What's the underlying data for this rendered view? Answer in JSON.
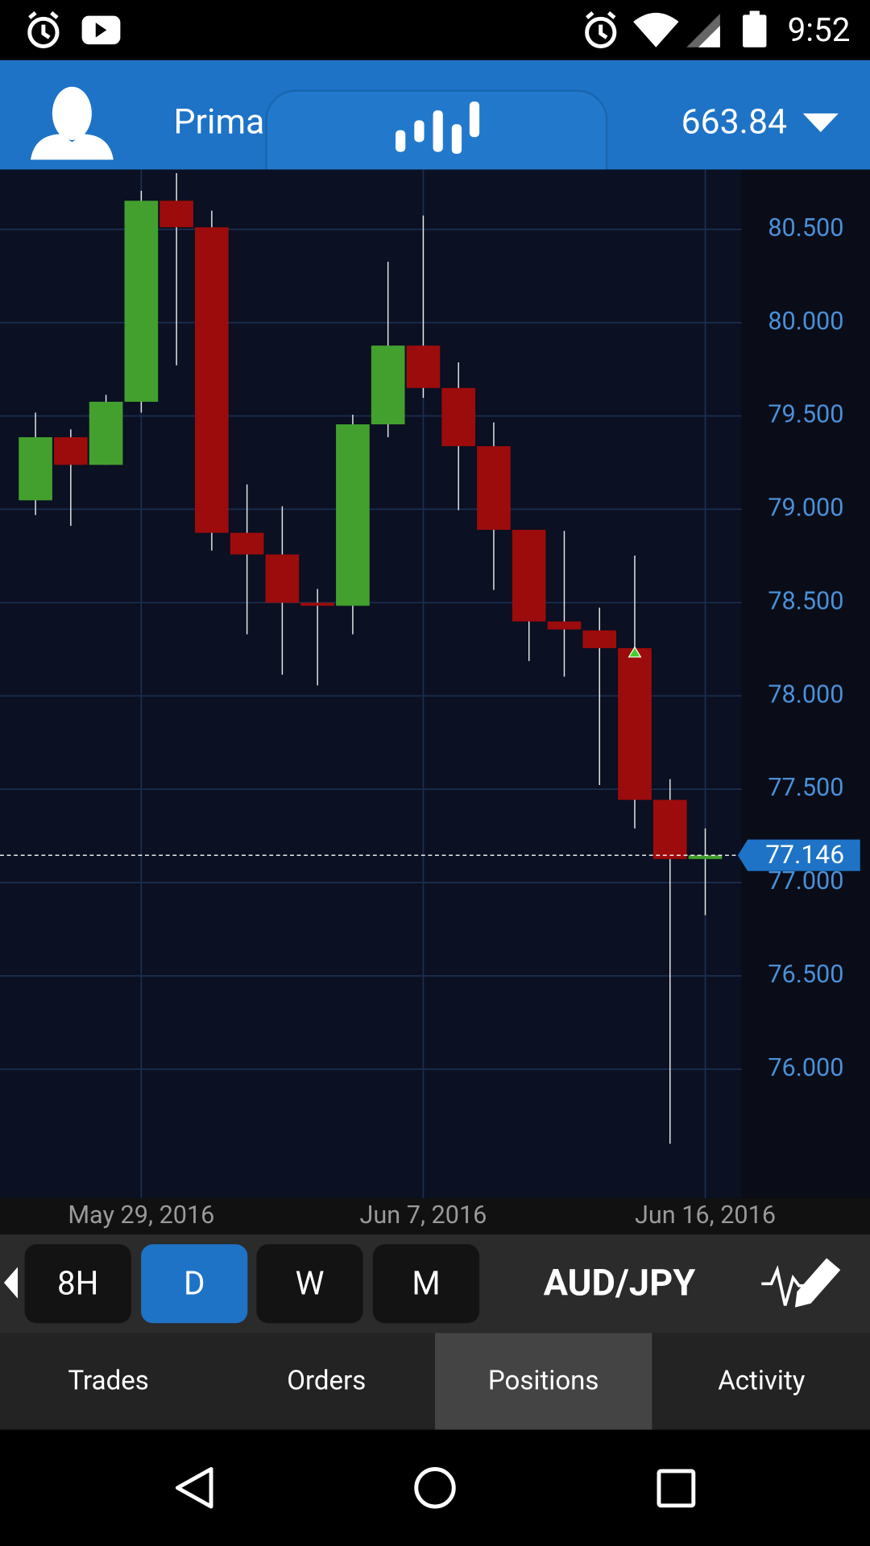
{
  "ui": {
    "status_time": "9:52",
    "account_label": "Prima",
    "balance": "663.84",
    "timeframes": [
      "8H",
      "D",
      "W",
      "M"
    ],
    "pair": "AUD/JPY",
    "tabs": [
      "Trades",
      "Orders",
      "Positions",
      "Activity"
    ]
  },
  "chart_data": {
    "type": "candlestick",
    "categories": [
      null,
      null,
      null,
      "May 29, 2016",
      null,
      null,
      null,
      null,
      null,
      null,
      null,
      "Jun 7, 2016",
      null,
      null,
      null,
      null,
      null,
      null,
      null,
      "Jun 16, 2016"
    ],
    "open": [
      79.048,
      79.386,
      79.238,
      79.576,
      80.653,
      80.511,
      78.874,
      78.758,
      78.499,
      78.483,
      79.455,
      79.877,
      79.65,
      79.338,
      78.89,
      78.399,
      78.351,
      78.256,
      77.443,
      77.126
    ],
    "high": [
      79.518,
      79.428,
      79.613,
      80.706,
      80.801,
      80.6,
      79.133,
      79.016,
      78.573,
      79.507,
      80.326,
      80.574,
      79.787,
      79.465,
      78.89,
      78.884,
      78.473,
      78.752,
      77.554,
      77.29
    ],
    "low": [
      78.969,
      78.911,
      79.238,
      79.518,
      79.771,
      78.779,
      78.33,
      78.114,
      78.056,
      78.33,
      79.386,
      79.597,
      78.995,
      78.568,
      78.187,
      78.103,
      77.522,
      77.29,
      75.6,
      76.825
    ],
    "close": [
      79.386,
      79.238,
      79.576,
      80.653,
      80.511,
      78.874,
      78.758,
      78.499,
      78.483,
      79.455,
      79.877,
      79.65,
      79.338,
      78.89,
      78.399,
      78.356,
      78.256,
      77.443,
      77.126,
      77.146
    ],
    "up_color": "#43a02e",
    "down_color": "#9c0c0c",
    "ylim": [
      75.31,
      80.82
    ],
    "yticks": [
      {
        "value": 76,
        "label": "76.000"
      },
      {
        "value": 76.5,
        "label": "76.500"
      },
      {
        "value": 77,
        "label": "77.000"
      },
      {
        "value": 77.5,
        "label": "77.500"
      },
      {
        "value": 78,
        "label": "78.000"
      },
      {
        "value": 78.5,
        "label": "78.500"
      },
      {
        "value": 79,
        "label": "79.000"
      },
      {
        "value": 79.5,
        "label": "79.500"
      },
      {
        "value": 80,
        "label": "80.000"
      },
      {
        "value": 80.5,
        "label": "80.500"
      }
    ],
    "current_price": 77.146,
    "grid": true
  }
}
